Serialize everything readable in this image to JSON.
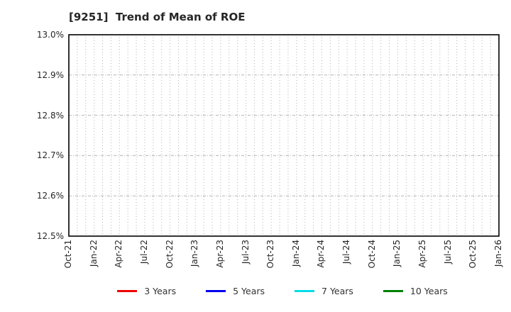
{
  "chart_data": {
    "type": "line",
    "title": "[9251]  Trend of Mean of ROE",
    "xlabel": "",
    "ylabel": "",
    "ylim": [
      12.5,
      13.0
    ],
    "y_tick_values": [
      13.0,
      12.9,
      12.8,
      12.7,
      12.6,
      12.5
    ],
    "y_tick_labels": [
      "13.0%",
      "12.9%",
      "12.8%",
      "12.7%",
      "12.6%",
      "12.5%"
    ],
    "x_tick_labels": [
      "Oct-21",
      "Jan-22",
      "Apr-22",
      "Jul-22",
      "Oct-22",
      "Jan-23",
      "Apr-23",
      "Jul-23",
      "Oct-23",
      "Jan-24",
      "Apr-24",
      "Jul-24",
      "Oct-24",
      "Jan-25",
      "Apr-25",
      "Jul-25",
      "Oct-25",
      "Jan-26"
    ],
    "x_tick_month_indices": [
      0,
      3,
      6,
      9,
      12,
      15,
      18,
      21,
      24,
      27,
      30,
      33,
      36,
      39,
      42,
      45,
      48,
      51
    ],
    "months_total": 51,
    "grid": true,
    "grid_vertical_style": "dotted-monthly",
    "grid_horizontal_style": "dashed-at-yticks",
    "legend_position": "bottom",
    "series": [
      {
        "name": "3 Years",
        "color": "#ee0000",
        "values": []
      },
      {
        "name": "5 Years",
        "color": "#0000ee",
        "values": []
      },
      {
        "name": "7 Years",
        "color": "#00dde4",
        "values": []
      },
      {
        "name": "10 Years",
        "color": "#008000",
        "values": []
      }
    ]
  },
  "style": {
    "plot_border_color": "#000000",
    "grid_color": "#b3b3b3",
    "text_color": "#262626"
  }
}
